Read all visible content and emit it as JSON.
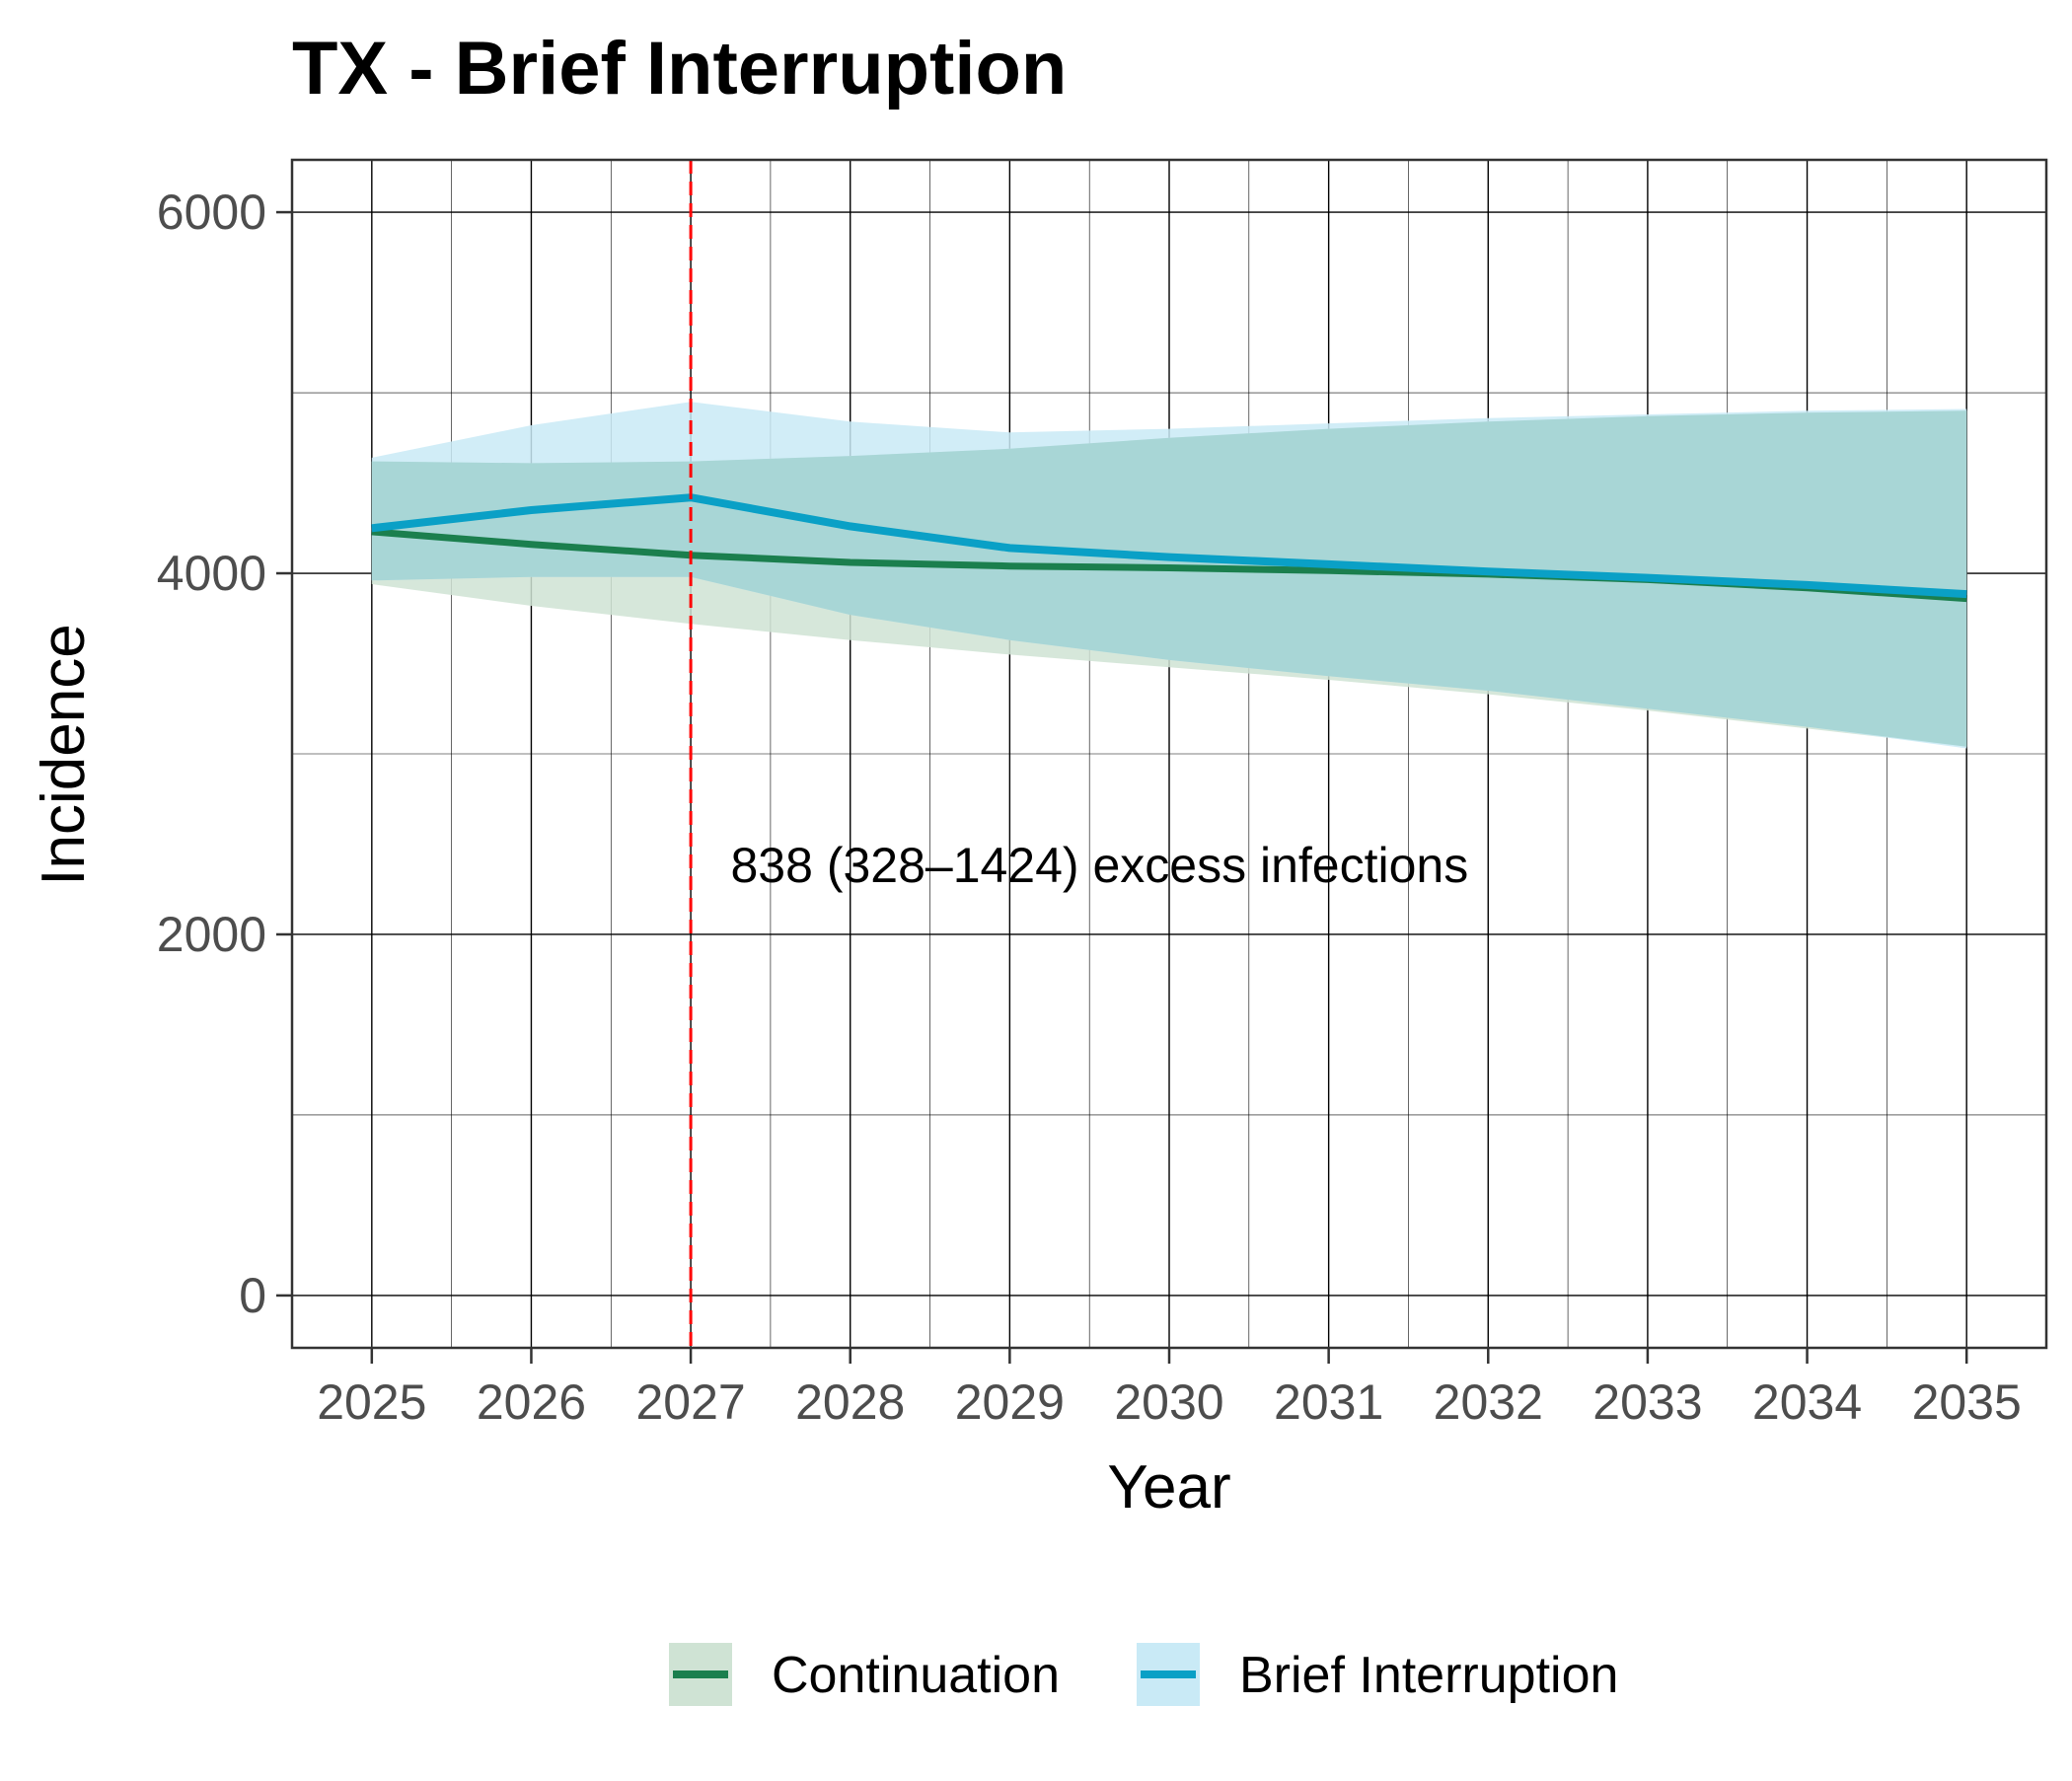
{
  "chart_data": {
    "type": "line",
    "title": "TX - Brief Interruption",
    "xlabel": "Year",
    "ylabel": "Incidence",
    "xlim": [
      2024.5,
      2035.5
    ],
    "ylim": [
      -290,
      6290
    ],
    "x_ticks": [
      2025,
      2026,
      2027,
      2028,
      2029,
      2030,
      2031,
      2032,
      2033,
      2034,
      2035
    ],
    "y_ticks": [
      0,
      2000,
      4000,
      6000
    ],
    "grid": true,
    "legend_position": "bottom",
    "colors": {
      "continuation_line": "#1b7f4e",
      "continuation_band": "#cfe3d4",
      "interruption_line": "#0aa0c6",
      "interruption_band": "#c9eaf6",
      "overlap_band": "#a8d6d6",
      "intervention_line": "#ff0000",
      "grid": "#000000",
      "axis_text": "#4d4d4d"
    },
    "x": [
      2025,
      2026,
      2027,
      2028,
      2029,
      2030,
      2031,
      2032,
      2033,
      2034,
      2035
    ],
    "series": [
      {
        "name": "Continuation",
        "values": [
          4230,
          4160,
          4100,
          4060,
          4040,
          4030,
          4015,
          3995,
          3965,
          3920,
          3860
        ],
        "lower": [
          3940,
          3820,
          3720,
          3630,
          3550,
          3480,
          3410,
          3330,
          3240,
          3140,
          3040
        ],
        "upper": [
          4620,
          4610,
          4620,
          4650,
          4690,
          4750,
          4800,
          4840,
          4870,
          4890,
          4900
        ]
      },
      {
        "name": "Brief Interruption",
        "values": [
          4250,
          4350,
          4420,
          4260,
          4140,
          4090,
          4050,
          4010,
          3975,
          3935,
          3885
        ],
        "lower": [
          3960,
          3980,
          3980,
          3770,
          3630,
          3520,
          3430,
          3350,
          3250,
          3150,
          3030
        ],
        "upper": [
          4640,
          4820,
          4950,
          4840,
          4780,
          4800,
          4830,
          4860,
          4880,
          4900,
          4910
        ]
      }
    ],
    "vline": {
      "x": 2027
    },
    "annotation": {
      "text": "838 (328–1424) excess infections",
      "x": 2027.25,
      "y": 2290
    }
  }
}
